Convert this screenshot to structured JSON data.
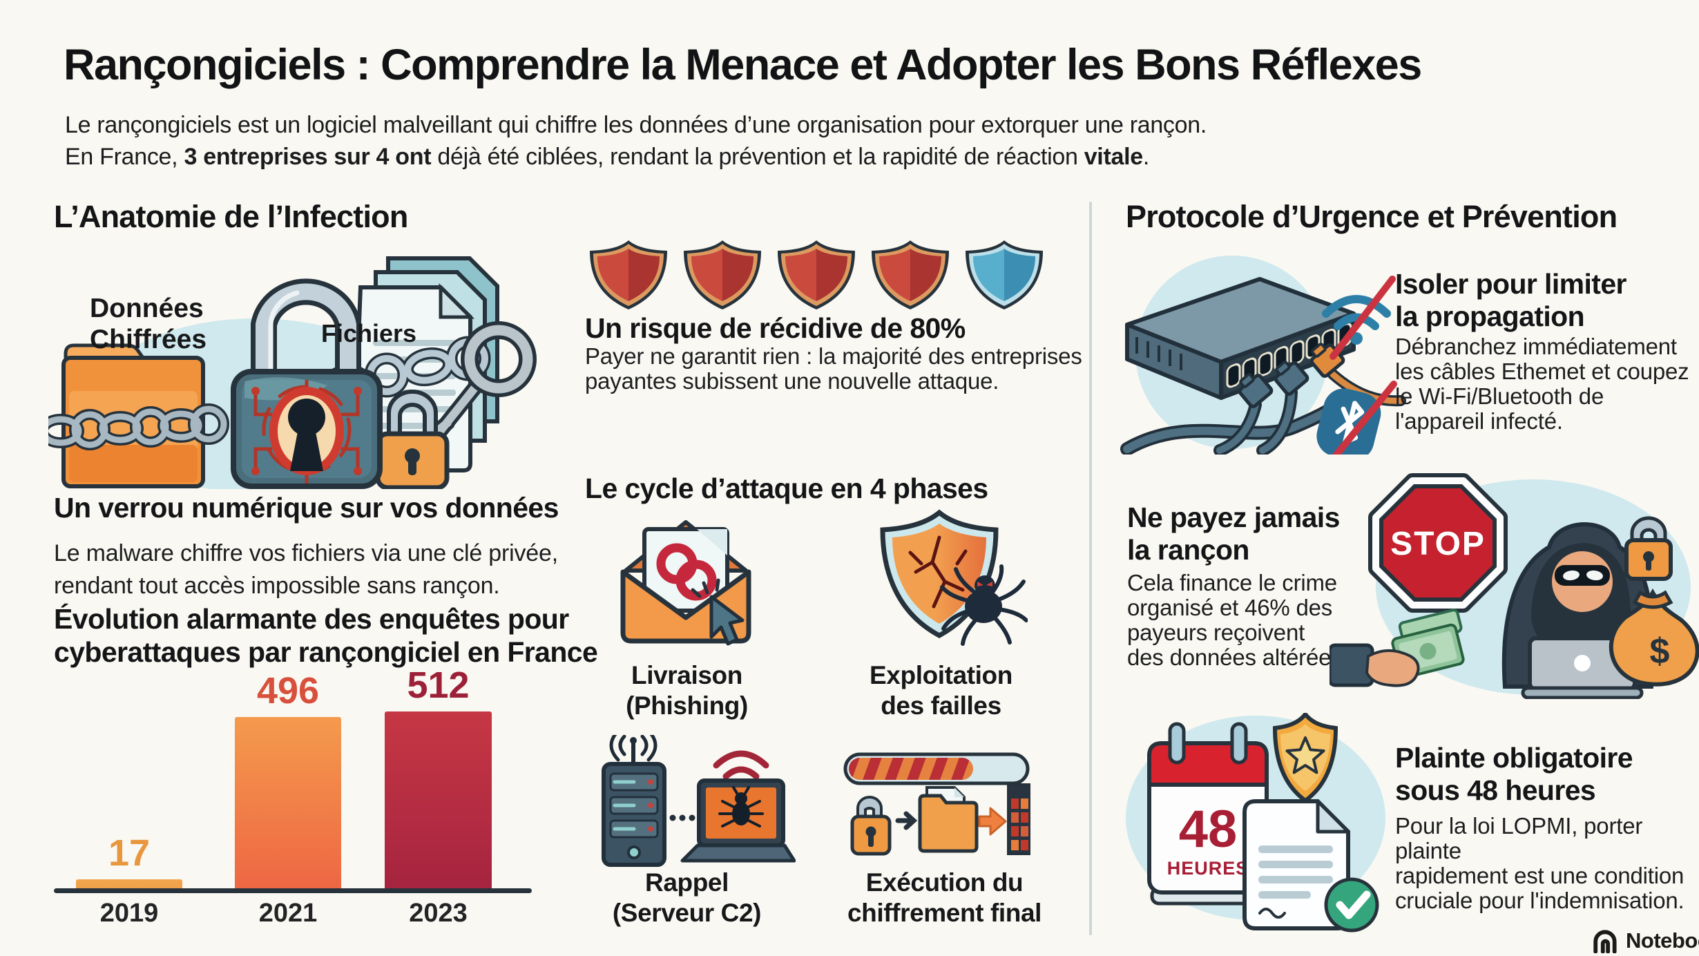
{
  "colors": {
    "background": "#faf8f2",
    "accent_red": "#c0392b",
    "accent_orange": "#f0923c",
    "accent_light_blue": "#cfe9ee",
    "divider": "#c8d8da",
    "stop_red": "#c5212e"
  },
  "header": {
    "title": "Rançongiciels : Comprendre la Menace et Adopter les Bons Réflexes",
    "subtitle_line1": "Le rançongiciels est un logiciel malveillant qui chiffre les données d’une organisation pour extorquer une rançon.",
    "subtitle_line2_parts": [
      "En France, ",
      "3 entreprises sur 4 ont",
      " déjà été ciblées, rendant la prévention et la rapidité de réaction ",
      "vitale",
      "."
    ]
  },
  "left_column": {
    "heading": "L’Anatomie de l’Infection",
    "illustration_labels": {
      "data": "Données\nChiffrées",
      "files": "Fichiers"
    },
    "lock_title": "Un verrou numérique sur vos données",
    "lock_body": "Le malware chiffre vos fichiers via une clé privée,\nrendant tout accès impossible sans rançon."
  },
  "chart_data": {
    "type": "bar",
    "title": "Évolution alarmante des enquêtes pour\ncyberattaques par rançongiciel en France",
    "categories": [
      "2019",
      "2021",
      "2023"
    ],
    "values": [
      17,
      496,
      512
    ],
    "xlabel": "",
    "ylabel": "",
    "ylim": [
      0,
      560
    ],
    "grid": false,
    "legend": false,
    "bar_colors": [
      [
        "#f3a74f",
        "#efa04a"
      ],
      [
        "#f49a4d",
        "#ee6743"
      ],
      [
        "#c63744",
        "#a62440"
      ]
    ],
    "value_label_colors": [
      "#e8973f",
      "#d8503c",
      "#9c2038"
    ]
  },
  "middle_column": {
    "shields": {
      "red_count": 4,
      "blue_count": 1
    },
    "recurrence_title": "Un risque de récidive de 80%",
    "recurrence_body": "Payer ne garantit rien : la majorité des entreprises\npayantes subissent une nouvelle attaque.",
    "cycle_title": "Le cycle d’attaque en 4 phases",
    "phases": [
      {
        "label": "Livraison",
        "sublabel": "(Phishing)"
      },
      {
        "label": "Exploitation",
        "sublabel": "des failles"
      },
      {
        "label": "Rappel",
        "sublabel": "(Serveur C2)"
      },
      {
        "label": "Exécution du",
        "sublabel": "chiffrement final"
      }
    ]
  },
  "right_column": {
    "heading": "Protocole d’Urgence et Prévention",
    "isolate": {
      "title": "Isoler pour limiter\nla propagation",
      "body": "Débranchez immédiatement\nles câbles Ethemet et coupez\nle Wi-Fi/Bluetooth de\nl'appareil infecté."
    },
    "no_pay": {
      "title": "Ne payez jamais\nla rançon",
      "body": "Cela finance le crime\norganisé et 46% des\npayeurs reçoivent\ndes données altérées.",
      "stop_label": "STOP",
      "money_symbol": "$"
    },
    "complaint": {
      "title": "Plainte obligatoire\nsous 48 heures",
      "body": "Pour la loi LOPMI, porter plainte\nrapidement est une condition\ncruciale pour l'indemnisation.",
      "calendar_number": "48",
      "calendar_unit": "HEURES"
    }
  },
  "footer": {
    "watermark": "NotebookLM"
  }
}
